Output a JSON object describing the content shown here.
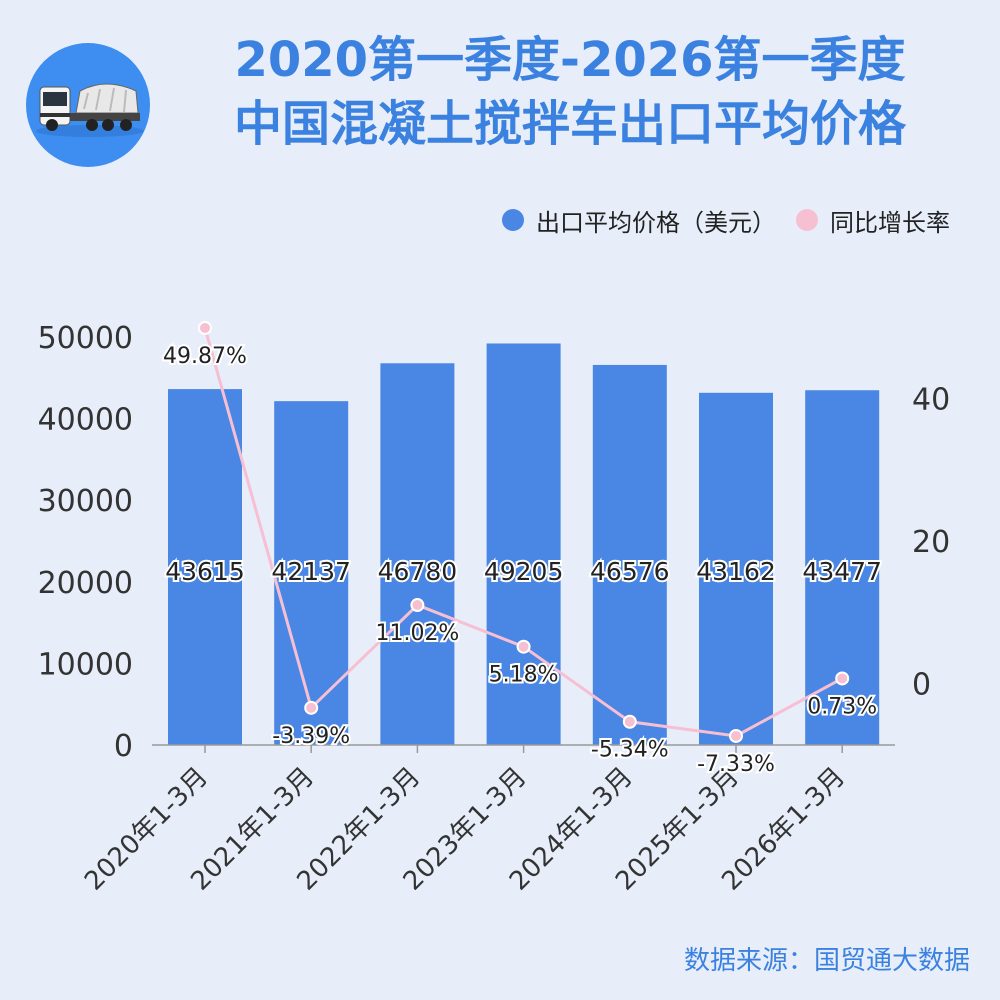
{
  "header": {
    "title_line1": "2020第一季度-2026第一季度",
    "title_line2": "中国混凝土搅拌车出口平均价格",
    "logo_icon": "mixer-truck-icon"
  },
  "colors": {
    "bar": "#4a86e3",
    "line": "#f7bfd2",
    "title": "#3b82e0",
    "background": "#e7eef9"
  },
  "chart_data": {
    "type": "bar",
    "categories": [
      "2020年1-3月",
      "2021年1-3月",
      "2022年1-3月",
      "2023年1-3月",
      "2024年1-3月",
      "2025年1-3月",
      "2026年1-3月"
    ],
    "series": [
      {
        "name": "出口平均价格（美元）",
        "type": "bar",
        "axis": "left",
        "values": [
          43615,
          42137,
          46780,
          49205,
          46576,
          43162,
          43477
        ],
        "labels": [
          "43615",
          "42137",
          "46780",
          "49205",
          "46576",
          "43162",
          "43477"
        ]
      },
      {
        "name": "同比增长率",
        "type": "line",
        "axis": "right",
        "values": [
          49.87,
          -3.39,
          11.02,
          5.18,
          -5.34,
          -7.33,
          0.73
        ],
        "labels": [
          "49.87%",
          "-3.39%",
          "11.02%",
          "5.18%",
          "-5.34%",
          "-7.33%",
          "0.73%"
        ]
      }
    ],
    "y_left": {
      "ticks": [
        "0",
        "10000",
        "20000",
        "30000",
        "40000",
        "50000"
      ],
      "ylim": [
        0,
        50000
      ]
    },
    "y_right": {
      "ticks": [
        "0",
        "20",
        "40"
      ],
      "ylim": [
        -8.6,
        48.6
      ]
    },
    "legend_position": "top-right",
    "grid": false
  },
  "source": "数据来源：国贸通大数据"
}
